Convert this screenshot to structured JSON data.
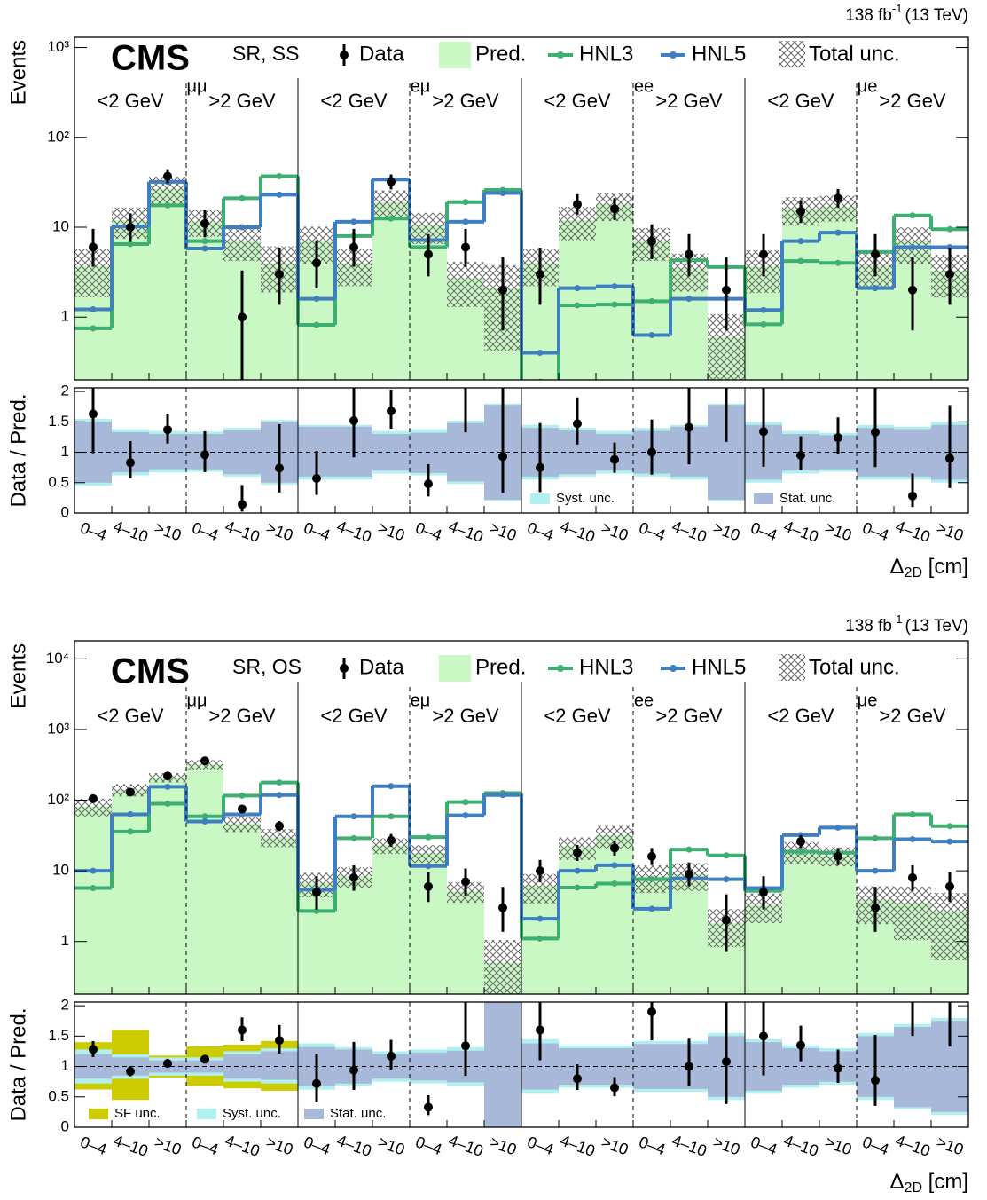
{
  "chart_data": [
    {
      "type": "hist",
      "log_y": true,
      "experiment": "CMS",
      "region": "SR, SS",
      "lumi": "138 fb",
      "lumi_exp": "-1",
      "energy": "(13 TeV)",
      "ylabel": "Events",
      "ratio_ylabel": "Data / Pred.",
      "xlabel": "Δ",
      "xlabel_sub": "2D",
      "xlabel_unit": " [cm]",
      "channels": [
        "μμ",
        "eμ",
        "ee",
        "μe"
      ],
      "mass_labels": [
        "<2 GeV",
        ">2 GeV"
      ],
      "categories": [
        "0–4",
        "4–10",
        ">10",
        "0–4",
        "4–10",
        ">10",
        "0–4",
        "4–10",
        ">10",
        "0–4",
        "4–10",
        ">10",
        "0–4",
        "4–10",
        ">10",
        "0–4",
        "4–10",
        ">10",
        "0–4",
        "4–10",
        ">10",
        "0–4",
        "4–10",
        ">10"
      ],
      "ylim": [
        0.2,
        1300
      ],
      "yticks": [
        1,
        10,
        {
          "value": 100,
          "label": "10²"
        },
        {
          "value": 1000,
          "label": "10³"
        }
      ],
      "ratio_ylim": [
        0,
        2.06
      ],
      "ratio_yticks": [
        0,
        0.5,
        1,
        1.5,
        2
      ],
      "data": {
        "name": "Data",
        "color": "#000000",
        "values": [
          6,
          10,
          37,
          11,
          1,
          3,
          4,
          6,
          32,
          5,
          6,
          2,
          3,
          18,
          16,
          7,
          5,
          2,
          5,
          15,
          21,
          5,
          2,
          3
        ],
        "err_low": [
          2.38,
          3.11,
          6.1,
          3.27,
          0.83,
          1.63,
          1.91,
          2.38,
          5.6,
          2.16,
          2.38,
          1.29,
          1.63,
          4.2,
          3.96,
          2.58,
          2.16,
          1.29,
          2.16,
          3.83,
          4.55,
          2.16,
          1.29,
          1.63
        ],
        "err_high": [
          3.58,
          4.26,
          7.2,
          4.41,
          2.3,
          2.92,
          3.16,
          3.58,
          6.7,
          3.38,
          3.58,
          2.64,
          2.92,
          5.3,
          5.08,
          3.77,
          3.38,
          2.64,
          3.38,
          4.95,
          5.65,
          3.38,
          2.64,
          2.92
        ]
      },
      "pred": {
        "name": "Pred.",
        "color": "#c9f8c4",
        "values": [
          3.7,
          12,
          27,
          11.5,
          7,
          4,
          7,
          4,
          19,
          10.5,
          2.7,
          2.1,
          4,
          12,
          18,
          7,
          3.5,
          0.6,
          3.7,
          16,
          17,
          3.8,
          7,
          3.3
        ]
      },
      "series": [
        {
          "name": "HNL3",
          "color": "#3daf72",
          "values": [
            0.75,
            6.5,
            17.5,
            7,
            21,
            37,
            0.82,
            8,
            12.5,
            6,
            19,
            26,
            0.19,
            1.35,
            1.38,
            1.5,
            4.3,
            3.6,
            0.83,
            4.2,
            4,
            5.3,
            13.5,
            9.5
          ]
        },
        {
          "name": "HNL5",
          "color": "#3f7fbf",
          "values": [
            1.22,
            10.2,
            32,
            5.8,
            10,
            23,
            1.6,
            11.5,
            34,
            7.2,
            11.5,
            24,
            0.4,
            2.1,
            2.2,
            0.63,
            1.6,
            1.6,
            1.2,
            7,
            8.7,
            2.1,
            6,
            6
          ]
        }
      ],
      "total_unc": {
        "name": "Total unc."
      },
      "ratio": {
        "values": [
          1.63,
          0.83,
          1.37,
          0.96,
          0.14,
          0.74,
          0.57,
          1.52,
          1.68,
          0.48,
          2.2,
          0.93,
          0.75,
          1.47,
          0.88,
          1.0,
          1.41,
          3.3,
          1.34,
          0.95,
          1.24,
          1.33,
          0.28,
          0.9
        ]
      },
      "bands": [
        {
          "name": "Syst. unc.",
          "color": "#b0f0ee",
          "low": [
            0.45,
            0.62,
            0.67,
            0.68,
            0.6,
            0.47,
            0.55,
            0.55,
            0.65,
            0.62,
            0.48,
            0.2,
            0.55,
            0.6,
            0.65,
            0.6,
            0.55,
            0.2,
            0.5,
            0.65,
            0.68,
            0.55,
            0.55,
            0.5
          ],
          "high": [
            1.55,
            1.38,
            1.35,
            1.34,
            1.4,
            1.53,
            1.45,
            1.45,
            1.35,
            1.38,
            1.52,
            1.8,
            1.45,
            1.4,
            1.35,
            1.4,
            1.45,
            1.8,
            1.5,
            1.35,
            1.32,
            1.45,
            1.42,
            1.5
          ]
        },
        {
          "name": "Stat. unc.",
          "color": "#a8b8d8",
          "low": [
            0.5,
            0.67,
            0.72,
            0.72,
            0.64,
            0.5,
            0.6,
            0.6,
            0.7,
            0.66,
            0.52,
            0.22,
            0.6,
            0.64,
            0.7,
            0.65,
            0.6,
            0.22,
            0.55,
            0.7,
            0.72,
            0.6,
            0.6,
            0.55
          ],
          "high": [
            1.5,
            1.33,
            1.3,
            1.3,
            1.36,
            1.5,
            1.42,
            1.42,
            1.3,
            1.32,
            1.48,
            1.78,
            1.4,
            1.36,
            1.3,
            1.35,
            1.42,
            1.78,
            1.45,
            1.3,
            1.28,
            1.4,
            1.38,
            1.45
          ]
        }
      ]
    },
    {
      "type": "hist",
      "log_y": true,
      "experiment": "CMS",
      "region": "SR, OS",
      "lumi": "138 fb",
      "lumi_exp": "-1",
      "energy": "(13 TeV)",
      "ylabel": "Events",
      "ratio_ylabel": "Data / Pred.",
      "xlabel": "Δ",
      "xlabel_sub": "2D",
      "xlabel_unit": " [cm]",
      "channels": [
        "μμ",
        "eμ",
        "ee",
        "μe"
      ],
      "mass_labels": [
        "<2 GeV",
        ">2 GeV"
      ],
      "categories": [
        "0–4",
        "4–10",
        ">10",
        "0–4",
        "4–10",
        ">10",
        "0–4",
        "4–10",
        ">10",
        "0–4",
        "4–10",
        ">10",
        "0–4",
        "4–10",
        ">10",
        "0–4",
        "4–10",
        ">10",
        "0–4",
        "4–10",
        ">10",
        "0–4",
        "4–10",
        ">10"
      ],
      "ylim": [
        0.18,
        18000
      ],
      "yticks": [
        1,
        10,
        {
          "value": 100,
          "label": "10²"
        },
        {
          "value": 1000,
          "label": "10³"
        },
        {
          "value": 10000,
          "label": "10⁴"
        }
      ],
      "ratio_ylim": [
        0,
        2.06
      ],
      "ratio_yticks": [
        0,
        0.5,
        1,
        1.5,
        2
      ],
      "data": {
        "name": "Data",
        "color": "#000000",
        "values": [
          105,
          130,
          220,
          360,
          75,
          43,
          5,
          8,
          27,
          6,
          7,
          3,
          10,
          18,
          21,
          16,
          9,
          2,
          5,
          26,
          16,
          3,
          8,
          6
        ],
        "err_low": [
          10.2,
          11.4,
          14.8,
          19,
          8.6,
          6.5,
          2.16,
          2.77,
          5.1,
          2.38,
          2.58,
          1.63,
          3.11,
          4.2,
          4.55,
          3.96,
          2.94,
          1.29,
          2.16,
          5.08,
          3.96,
          1.63,
          2.77,
          2.38
        ],
        "err_high": [
          11.3,
          12.4,
          15.8,
          20,
          9.7,
          7.6,
          3.38,
          3.95,
          6.2,
          3.58,
          3.77,
          2.92,
          4.26,
          5.3,
          5.65,
          5.08,
          4.11,
          2.64,
          3.38,
          6.18,
          5.08,
          2.92,
          3.95,
          3.58
        ]
      },
      "pred": {
        "name": "Pred.",
        "color": "#c9f8c4",
        "values": [
          82,
          141,
          210,
          320,
          47,
          30,
          6.8,
          8.5,
          23,
          18,
          5.2,
          0.5,
          6.2,
          22,
          32,
          8.4,
          9,
          1.85,
          3.3,
          19,
          16.5,
          3.9,
          3.5,
          2.7
        ]
      },
      "series": [
        {
          "name": "HNL3",
          "color": "#3daf72",
          "values": [
            5.7,
            36,
            89,
            59,
            116,
            178,
            2.7,
            29,
            59,
            30,
            94,
            126,
            1.1,
            5.8,
            6.6,
            7.6,
            20,
            16.5,
            5.2,
            18.6,
            18,
            29,
            63,
            43
          ]
        },
        {
          "name": "HNL5",
          "color": "#3f7fbf",
          "values": [
            10,
            63,
            155,
            50,
            63,
            118,
            5.4,
            59,
            158,
            11.7,
            61,
            118,
            2.1,
            10,
            12,
            2.9,
            7.8,
            7.6,
            5.7,
            32,
            41,
            10,
            28,
            26
          ]
        }
      ],
      "total_unc": {
        "name": "Total unc."
      },
      "ratio": {
        "values": [
          1.28,
          0.92,
          1.05,
          1.12,
          1.6,
          1.43,
          0.72,
          0.94,
          1.17,
          0.33,
          1.34,
          6,
          1.6,
          0.8,
          0.65,
          1.9,
          1.0,
          1.08,
          1.5,
          1.35,
          0.97,
          0.77,
          2.3,
          2.2
        ]
      },
      "bands": [
        {
          "name": "SF unc.",
          "color": "#cccc00",
          "low": [
            0.62,
            0.45,
            0.82,
            0.68,
            0.64,
            0.6,
            null,
            null,
            null,
            null,
            null,
            null,
            null,
            null,
            null,
            null,
            null,
            null,
            null,
            null,
            null,
            null,
            null,
            null
          ],
          "high": [
            1.4,
            1.6,
            1.18,
            1.33,
            1.36,
            1.42,
            null,
            null,
            null,
            null,
            null,
            null,
            null,
            null,
            null,
            null,
            null,
            null,
            null,
            null,
            null,
            null,
            null,
            null
          ]
        },
        {
          "name": "Syst. unc.",
          "color": "#b0f0ee",
          "low": [
            0.72,
            0.8,
            0.85,
            0.85,
            0.75,
            0.72,
            0.62,
            0.68,
            0.75,
            0.72,
            0.68,
            0,
            0.55,
            0.65,
            0.65,
            0.58,
            0.58,
            0.45,
            0.55,
            0.65,
            0.7,
            0.45,
            0.3,
            0.2
          ],
          "high": [
            1.28,
            1.2,
            1.15,
            1.15,
            1.25,
            1.3,
            1.38,
            1.32,
            1.25,
            1.28,
            1.32,
            2.1,
            1.45,
            1.35,
            1.35,
            1.42,
            1.42,
            1.55,
            1.45,
            1.35,
            1.3,
            1.55,
            1.7,
            1.8
          ]
        },
        {
          "name": "Stat. unc.",
          "color": "#a8b8d8",
          "low": [
            0.8,
            0.85,
            0.9,
            0.9,
            0.8,
            0.78,
            0.68,
            0.72,
            0.8,
            0.77,
            0.74,
            0,
            0.62,
            0.7,
            0.7,
            0.63,
            0.63,
            0.5,
            0.6,
            0.7,
            0.75,
            0.5,
            0.33,
            0.25
          ],
          "high": [
            1.2,
            1.15,
            1.1,
            1.1,
            1.2,
            1.25,
            1.32,
            1.28,
            1.2,
            1.23,
            1.26,
            2.1,
            1.38,
            1.3,
            1.3,
            1.37,
            1.37,
            1.5,
            1.4,
            1.3,
            1.25,
            1.5,
            1.65,
            1.75
          ]
        }
      ]
    }
  ]
}
